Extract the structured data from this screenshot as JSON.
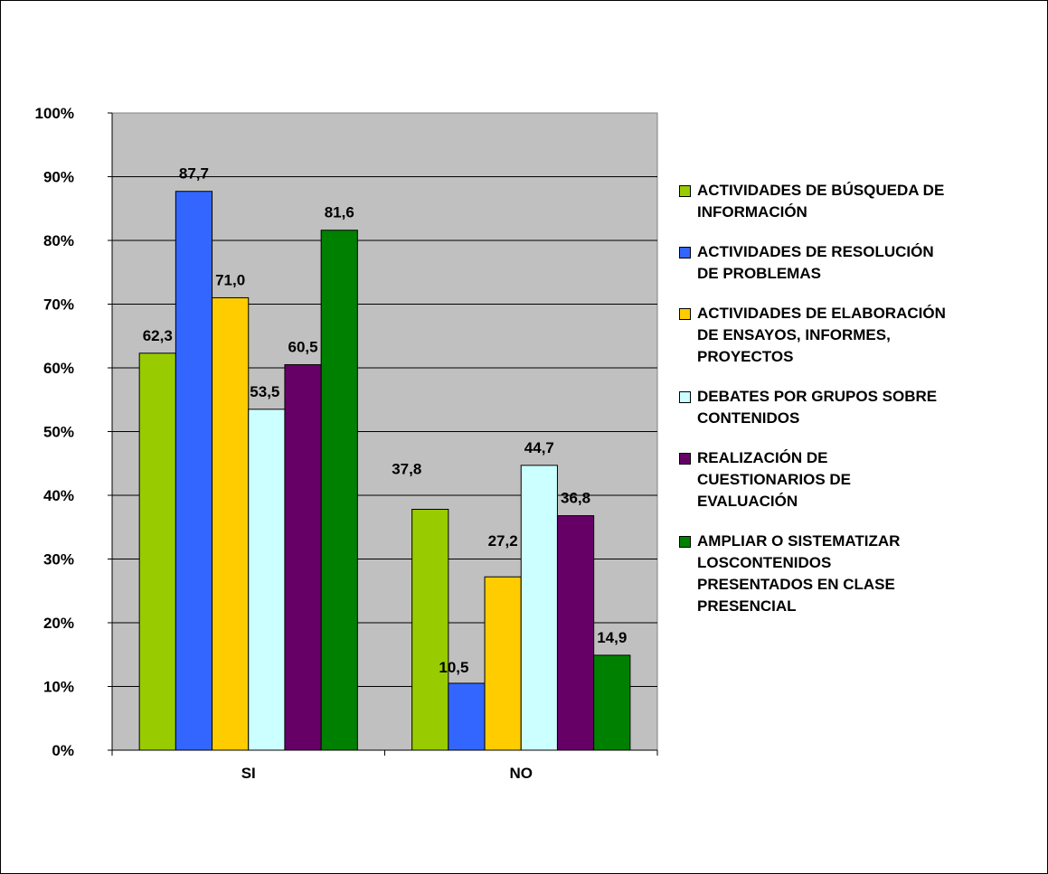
{
  "chart_data": {
    "type": "bar",
    "categories": [
      "SI",
      "NO"
    ],
    "yticks": [
      "0%",
      "10%",
      "20%",
      "30%",
      "40%",
      "50%",
      "60%",
      "70%",
      "80%",
      "90%",
      "100%"
    ],
    "ylim": [
      0,
      100
    ],
    "grid": true,
    "legend_position": "right",
    "series": [
      {
        "name": "ACTIVIDADES DE BÚSQUEDA DE\nINFORMACIÓN",
        "color": "#99cc00",
        "values": [
          62.3,
          37.8
        ],
        "labels": [
          "62,3",
          "37,8"
        ]
      },
      {
        "name": "ACTIVIDADES DE RESOLUCIÓN\nDE PROBLEMAS",
        "color": "#3366ff",
        "values": [
          87.7,
          10.5
        ],
        "labels": [
          "87,7",
          "10,5"
        ]
      },
      {
        "name": "ACTIVIDADES DE ELABORACIÓN\nDE ENSAYOS, INFORMES,\nPROYECTOS",
        "color": "#ffcc00",
        "values": [
          71.0,
          27.2
        ],
        "labels": [
          "71,0",
          "27,2"
        ]
      },
      {
        "name": "DEBATES  POR GRUPOS SOBRE\nCONTENIDOS",
        "color": "#ccffff",
        "values": [
          53.5,
          44.7
        ],
        "labels": [
          "53,5",
          "44,7"
        ]
      },
      {
        "name": "REALIZACIÓN DE\nCUESTIONARIOS DE\nEVALUACIÓN",
        "color": "#660066",
        "values": [
          60.5,
          36.8
        ],
        "labels": [
          "60,5",
          "36,8"
        ]
      },
      {
        "name": "AMPLIAR O SISTEMATIZAR\nLOSCONTENIDOS\nPRESENTADOS EN CLASE\nPRESENCIAL",
        "color": "#008000",
        "values": [
          81.6,
          14.9
        ],
        "labels": [
          "81,6",
          "14,9"
        ]
      }
    ],
    "plot_background": "#c0c0c0"
  }
}
